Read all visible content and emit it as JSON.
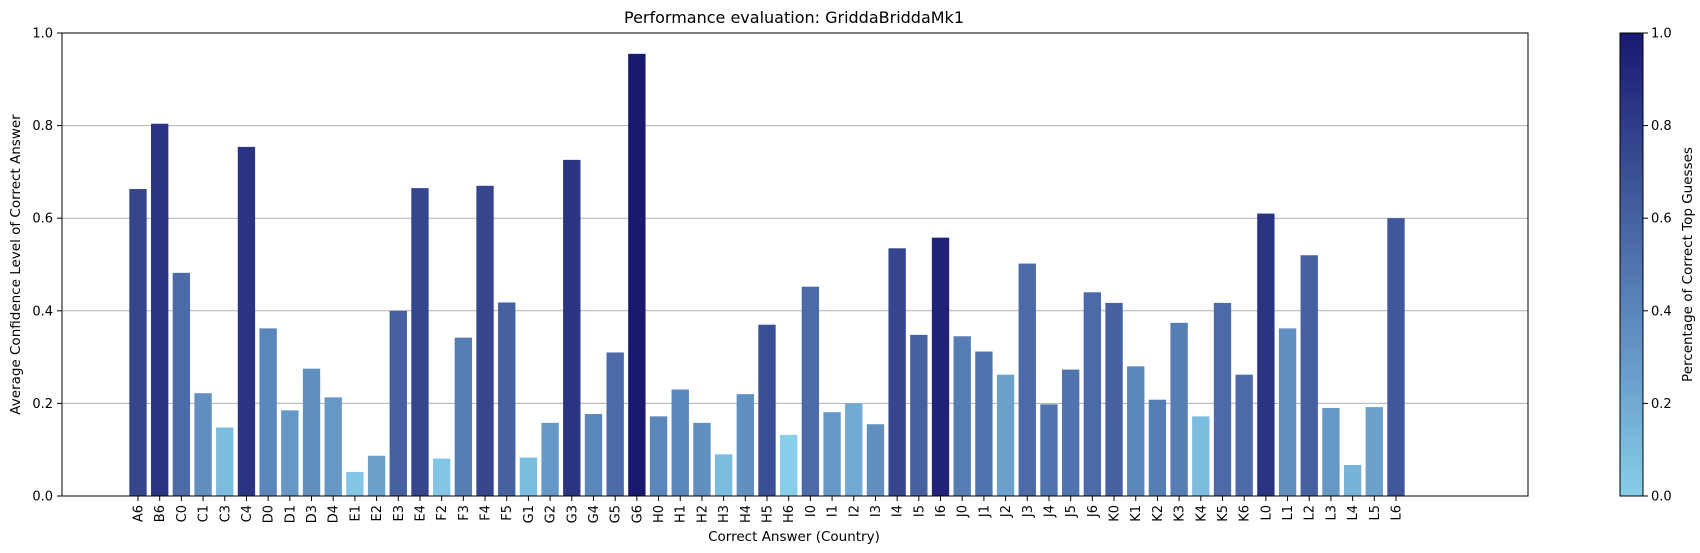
{
  "chart_data": {
    "type": "bar",
    "title": "Performance evaluation: GriddaBriddaMk1",
    "xlabel": "Correct Answer (Country)",
    "ylabel": "Average Confidence Level of Correct Answer",
    "ylim": [
      0,
      1
    ],
    "yticks": [
      "0.0",
      "0.2",
      "0.4",
      "0.6",
      "0.8",
      "1.0"
    ],
    "grid": "horizontal",
    "categories": [
      "A6",
      "B6",
      "C0",
      "C1",
      "C3",
      "C4",
      "D0",
      "D1",
      "D3",
      "D4",
      "E1",
      "E2",
      "E3",
      "E4",
      "F2",
      "F3",
      "F4",
      "F5",
      "G1",
      "G2",
      "G3",
      "G4",
      "G5",
      "G6",
      "H0",
      "H1",
      "H2",
      "H3",
      "H4",
      "H5",
      "H6",
      "I0",
      "I1",
      "I2",
      "I3",
      "I4",
      "I5",
      "I6",
      "J0",
      "J1",
      "J2",
      "J3",
      "J4",
      "J5",
      "J6",
      "K0",
      "K1",
      "K2",
      "K3",
      "K4",
      "K5",
      "K6",
      "L0",
      "L1",
      "L2",
      "L3",
      "L4",
      "L5",
      "L6"
    ],
    "values": [
      0.663,
      0.804,
      0.482,
      0.222,
      0.148,
      0.754,
      0.362,
      0.185,
      0.275,
      0.213,
      0.052,
      0.087,
      0.4,
      0.665,
      0.081,
      0.342,
      0.67,
      0.418,
      0.083,
      0.158,
      0.726,
      0.177,
      0.31,
      0.955,
      0.172,
      0.23,
      0.158,
      0.09,
      0.22,
      0.37,
      0.132,
      0.452,
      0.181,
      0.2,
      0.155,
      0.535,
      0.348,
      0.558,
      0.345,
      0.312,
      0.262,
      0.502,
      0.198,
      0.273,
      0.44,
      0.417,
      0.28,
      0.208,
      0.374,
      0.172,
      0.417,
      0.262,
      0.61,
      0.362,
      0.52,
      0.19,
      0.067,
      0.192,
      0.6
    ],
    "color_values": [
      0.75,
      0.85,
      0.55,
      0.35,
      0.1,
      0.85,
      0.4,
      0.3,
      0.35,
      0.3,
      0.05,
      0.25,
      0.6,
      0.75,
      0.05,
      0.45,
      0.75,
      0.6,
      0.1,
      0.3,
      0.85,
      0.4,
      0.55,
      1.0,
      0.4,
      0.4,
      0.35,
      0.1,
      0.35,
      0.7,
      0.0,
      0.55,
      0.3,
      0.2,
      0.35,
      0.75,
      0.6,
      0.95,
      0.45,
      0.5,
      0.25,
      0.55,
      0.5,
      0.5,
      0.55,
      0.6,
      0.4,
      0.45,
      0.45,
      0.1,
      0.55,
      0.55,
      0.85,
      0.35,
      0.6,
      0.3,
      0.15,
      0.25,
      0.65
    ],
    "colorbar": {
      "label": "Percentage of Correct Top Guesses",
      "range": [
        0,
        1
      ],
      "ticks": [
        "0.0",
        "0.2",
        "0.4",
        "0.6",
        "0.8",
        "1.0"
      ],
      "color_low": "#87ceeb",
      "color_high": "#191970"
    }
  }
}
